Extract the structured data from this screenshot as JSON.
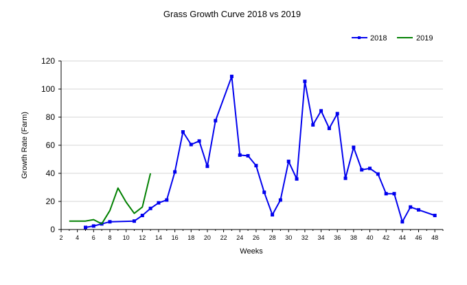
{
  "chart_data": {
    "type": "line",
    "title": "Grass Growth Curve 2018 vs 2019",
    "xlabel": "Weeks",
    "ylabel": "Growth Rate (Farm)",
    "xlim": [
      2,
      49
    ],
    "ylim": [
      0,
      120
    ],
    "xticks": [
      2,
      4,
      6,
      8,
      10,
      12,
      14,
      16,
      18,
      20,
      22,
      24,
      26,
      28,
      30,
      32,
      34,
      36,
      38,
      40,
      42,
      44,
      46,
      48
    ],
    "yticks": [
      0,
      20,
      40,
      60,
      80,
      100,
      120
    ],
    "grid": "horizontal",
    "legend": "top-right",
    "series": [
      {
        "name": "2018",
        "color": "#0000ee",
        "marker": "square",
        "x": [
          5,
          6,
          7,
          8,
          11,
          12,
          13,
          14,
          15,
          16,
          17,
          18,
          19,
          20,
          21,
          23,
          24,
          25,
          26,
          27,
          28,
          29,
          30,
          31,
          32,
          33,
          34,
          35,
          36,
          37,
          38,
          39,
          40,
          41,
          42,
          43,
          44,
          45,
          46,
          48
        ],
        "y": [
          1.5,
          2.5,
          4,
          5.5,
          6,
          10,
          15,
          19,
          21,
          41,
          69.5,
          60.5,
          63,
          45,
          77.5,
          109,
          53,
          52.5,
          45.5,
          26.5,
          10.5,
          21,
          48.5,
          36,
          105.5,
          74.5,
          84.5,
          72,
          82.5,
          36.5,
          58.5,
          42.5,
          43.5,
          39.5,
          25.5,
          25.5,
          5.5,
          16,
          14,
          10
        ]
      },
      {
        "name": "2019",
        "color": "#008000",
        "marker": "none",
        "x": [
          3,
          5,
          6,
          7,
          8,
          9,
          10,
          11,
          12,
          13
        ],
        "y": [
          6,
          6,
          7,
          4,
          13.5,
          29.5,
          19.5,
          11.5,
          16,
          40
        ]
      }
    ]
  }
}
